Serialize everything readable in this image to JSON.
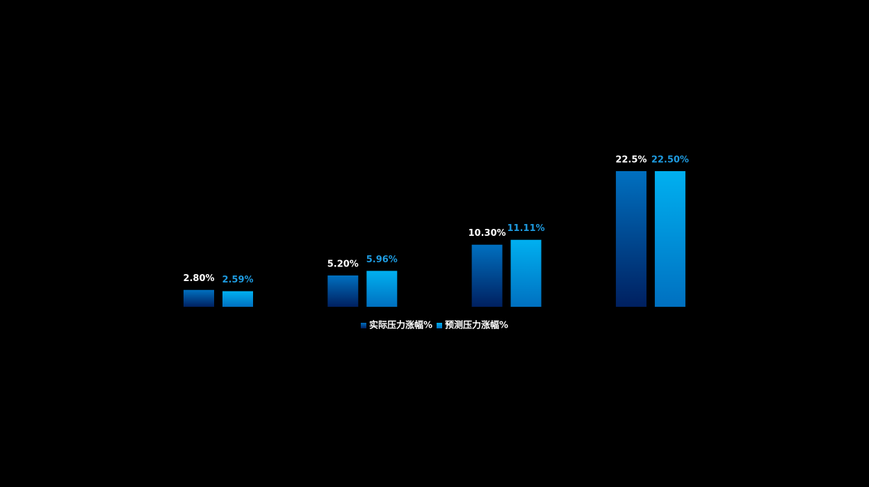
{
  "chart_data": {
    "type": "bar",
    "categories": [
      null,
      null,
      null,
      null
    ],
    "series": [
      {
        "name": "实际压力涨幅%",
        "color": "#0070c0",
        "gradient_to": "#002060",
        "label_color": "#ffffff",
        "values": [
          2.8,
          5.2,
          10.3,
          22.5
        ],
        "value_labels": [
          "2.80%",
          "5.20%",
          "10.30%",
          "22.5%"
        ]
      },
      {
        "name": "预测压力涨幅%",
        "color": "#00b0f0",
        "gradient_to": "#0070c0",
        "label_color": "#1e9be0",
        "values": [
          2.59,
          5.96,
          11.11,
          22.5
        ],
        "value_labels": [
          "2.59%",
          "5.96%",
          "11.11%",
          "22.50%"
        ]
      }
    ],
    "legend": "bottom"
  }
}
